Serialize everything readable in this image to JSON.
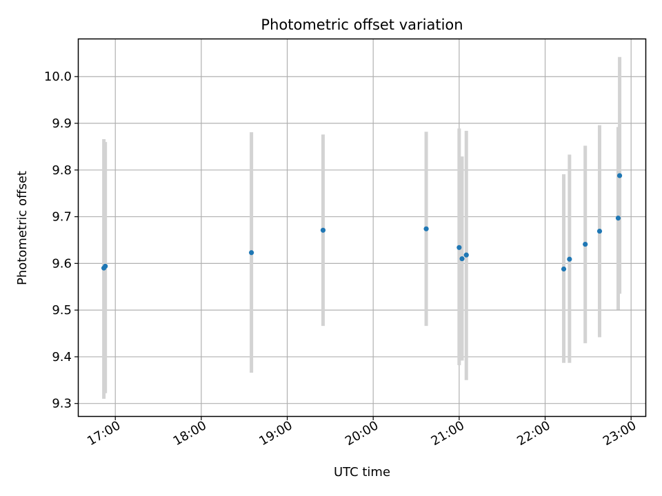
{
  "chart_data": {
    "type": "scatter",
    "title": "Photometric offset variation",
    "xlabel": "UTC time",
    "ylabel": "Photometric offset",
    "x_tick_labels": [
      "17:00",
      "18:00",
      "19:00",
      "20:00",
      "21:00",
      "22:00",
      "23:00"
    ],
    "x_tick_hours": [
      17,
      18,
      19,
      20,
      21,
      22,
      23
    ],
    "y_tick_labels": [
      "9.3",
      "9.4",
      "9.5",
      "9.6",
      "9.7",
      "9.8",
      "9.9",
      "10.0"
    ],
    "y_ticks": [
      9.3,
      9.4,
      9.5,
      9.6,
      9.7,
      9.8,
      9.9,
      10.0
    ],
    "xlim_hours": [
      16.573,
      23.167
    ],
    "ylim": [
      9.273,
      10.08
    ],
    "grid": true,
    "series": [
      {
        "marker_color": "#1f77b4",
        "errorbar_color": "#d3d3d3",
        "points": [
          {
            "t": "16:52",
            "y": 9.59,
            "lo": 9.31,
            "hi": 9.866
          },
          {
            "t": "16:53",
            "y": 9.594,
            "lo": 9.322,
            "hi": 9.86
          },
          {
            "t": "18:35",
            "y": 9.623,
            "lo": 9.366,
            "hi": 9.881
          },
          {
            "t": "19:25",
            "y": 9.671,
            "lo": 9.466,
            "hi": 9.876
          },
          {
            "t": "20:37",
            "y": 9.674,
            "lo": 9.466,
            "hi": 9.882
          },
          {
            "t": "21:00",
            "y": 9.634,
            "lo": 9.382,
            "hi": 9.889
          },
          {
            "t": "21:02",
            "y": 9.61,
            "lo": 9.392,
            "hi": 9.829
          },
          {
            "t": "21:05",
            "y": 9.618,
            "lo": 9.35,
            "hi": 9.884
          },
          {
            "t": "22:13",
            "y": 9.588,
            "lo": 9.387,
            "hi": 9.791
          },
          {
            "t": "22:17",
            "y": 9.609,
            "lo": 9.387,
            "hi": 9.833
          },
          {
            "t": "22:28",
            "y": 9.641,
            "lo": 9.429,
            "hi": 9.852
          },
          {
            "t": "22:38",
            "y": 9.669,
            "lo": 9.442,
            "hi": 9.896
          },
          {
            "t": "22:51",
            "y": 9.697,
            "lo": 9.501,
            "hi": 9.892
          },
          {
            "t": "22:52",
            "y": 9.788,
            "lo": 9.535,
            "hi": 10.042
          }
        ]
      }
    ]
  }
}
